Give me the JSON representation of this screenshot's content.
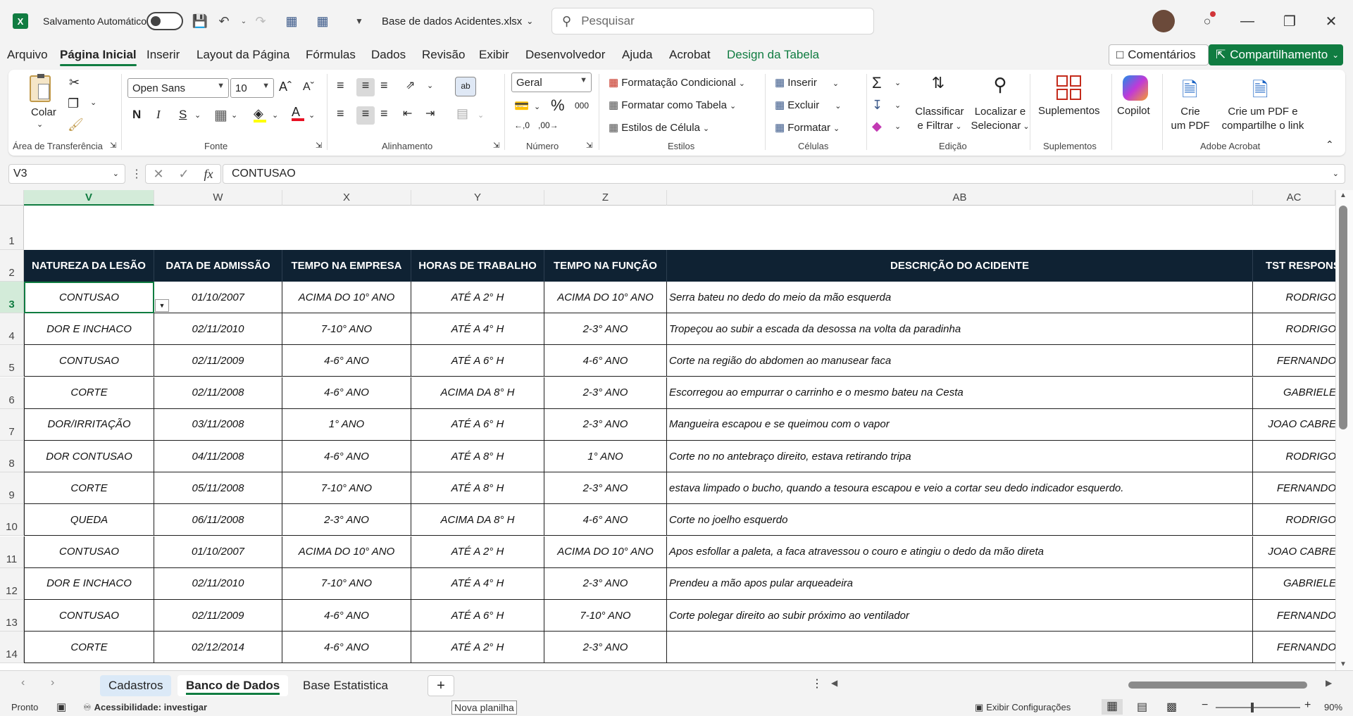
{
  "titlebar": {
    "app_logo": "X",
    "autosave_label": "Salvamento Automático",
    "file_name": "Base de dados Acidentes.xlsx",
    "search_placeholder": "Pesquisar"
  },
  "menu": {
    "tabs": [
      "Arquivo",
      "Página Inicial",
      "Inserir",
      "Layout da Página",
      "Fórmulas",
      "Dados",
      "Revisão",
      "Exibir",
      "Desenvolvedor",
      "Ajuda",
      "Acrobat",
      "Design da Tabela"
    ],
    "comments_label": "Comentários",
    "share_label": "Compartilhamento"
  },
  "ribbon": {
    "paste_label": "Colar",
    "font_name": "Open Sans",
    "font_size": "10",
    "bold": "N",
    "italic": "I",
    "underline": "S",
    "number_format": "Geral",
    "percent": "%",
    "thousands": "000",
    "cond_format": "Formatação Condicional",
    "format_table": "Formatar como Tabela",
    "cell_styles": "Estilos de Célula",
    "insert": "Inserir",
    "delete": "Excluir",
    "format": "Formatar",
    "sort_filter_1": "Classificar",
    "sort_filter_2": "e Filtrar",
    "find_select_1": "Localizar e",
    "find_select_2": "Selecionar",
    "addins": "Suplementos",
    "copilot": "Copilot",
    "create_pdf_1": "Crie",
    "create_pdf_2": "um PDF",
    "share_pdf_1": "Crie um PDF e",
    "share_pdf_2": "compartilhe o link",
    "groups": {
      "clipboard": "Área de Transferência",
      "font": "Fonte",
      "alignment": "Alinhamento",
      "number": "Número",
      "styles": "Estilos",
      "cells": "Células",
      "editing": "Edição",
      "addins": "Suplementos",
      "acrobat": "Adobe Acrobat"
    }
  },
  "formula_bar": {
    "name_box": "V3",
    "fx": "fx",
    "content": "CONTUSAO"
  },
  "columns": [
    "V",
    "W",
    "X",
    "Y",
    "Z",
    "AB",
    "AC"
  ],
  "row_numbers": [
    "1",
    "2",
    "3",
    "4",
    "5",
    "6",
    "7",
    "8",
    "9",
    "10",
    "11",
    "12",
    "13",
    "14"
  ],
  "table": {
    "headers": [
      "NATUREZA DA LESÃO",
      "DATA DE ADMISSÃO",
      "TEMPO NA EMPRESA",
      "HORAS DE TRABALHO",
      "TEMPO NA FUNÇÃO",
      "DESCRIÇÃO DO ACIDENTE",
      "TST RESPONS"
    ],
    "rows": [
      [
        "CONTUSAO",
        "01/10/2007",
        "ACIMA DO 10° ANO",
        "ATÉ A 2° H",
        "ACIMA DO 10° ANO",
        "Serra bateu no dedo do meio da mão esquerda",
        "RODRIGO"
      ],
      [
        "DOR E INCHACO",
        "02/11/2010",
        "7-10° ANO",
        "ATÉ A 4° H",
        "2-3° ANO",
        "Tropeçou ao subir a escada da desossa na volta da paradinha",
        "RODRIGO"
      ],
      [
        "CONTUSAO",
        "02/11/2009",
        "4-6° ANO",
        "ATÉ A 6° H",
        "4-6° ANO",
        "Corte na região do abdomen ao manusear faca",
        "FERNANDO"
      ],
      [
        "CORTE",
        "02/11/2008",
        "4-6° ANO",
        "ACIMA DA 8° H",
        "2-3° ANO",
        "Escorregou ao empurrar o carrinho e o mesmo bateu na Cesta",
        "GABRIELE"
      ],
      [
        "DOR/IRRITAÇÃO",
        "03/11/2008",
        "1° ANO",
        "ATÉ A 6° H",
        "2-3° ANO",
        "Mangueira escapou e se queimou com o vapor",
        "JOAO CABRE"
      ],
      [
        "DOR CONTUSAO",
        "04/11/2008",
        "4-6° ANO",
        "ATÉ A 8° H",
        "1° ANO",
        "Corte no no antebraço direito, estava retirando tripa",
        "RODRIGO"
      ],
      [
        "CORTE",
        "05/11/2008",
        "7-10° ANO",
        "ATÉ A 8° H",
        "2-3° ANO",
        "estava limpado o bucho, quando a tesoura escapou e veio a cortar seu dedo indicador esquerdo.",
        "FERNANDO"
      ],
      [
        "QUEDA",
        "06/11/2008",
        "2-3° ANO",
        "ACIMA DA 8° H",
        "4-6° ANO",
        "Corte no joelho esquerdo",
        "RODRIGO"
      ],
      [
        "CONTUSAO",
        "01/10/2007",
        "ACIMA DO 10° ANO",
        "ATÉ A 2° H",
        "ACIMA DO 10° ANO",
        "Apos esfollar a paleta, a faca atravessou o couro e atingiu o dedo da mão direta",
        "JOAO CABRE"
      ],
      [
        "DOR E INCHACO",
        "02/11/2010",
        "7-10° ANO",
        "ATÉ A 4° H",
        "2-3° ANO",
        "Prendeu a mão apos pular arqueadeira",
        "GABRIELE"
      ],
      [
        "CONTUSAO",
        "02/11/2009",
        "4-6° ANO",
        "ATÉ A 6° H",
        "7-10° ANO",
        "Corte polegar direito ao subir próximo ao ventilador",
        "FERNANDO"
      ],
      [
        "CORTE",
        "02/12/2014",
        "4-6° ANO",
        "ATÉ A 2° H",
        "2-3° ANO",
        "",
        "FERNANDO"
      ]
    ]
  },
  "sheets": [
    "Cadastros",
    "Banco de Dados",
    "Base Estatistica"
  ],
  "statusbar": {
    "ready": "Pronto",
    "accessibility": "Acessibilidade: investigar",
    "new_sheet_tooltip": "Nova planilha",
    "display_settings": "Exibir Configurações",
    "zoom": "90%"
  }
}
